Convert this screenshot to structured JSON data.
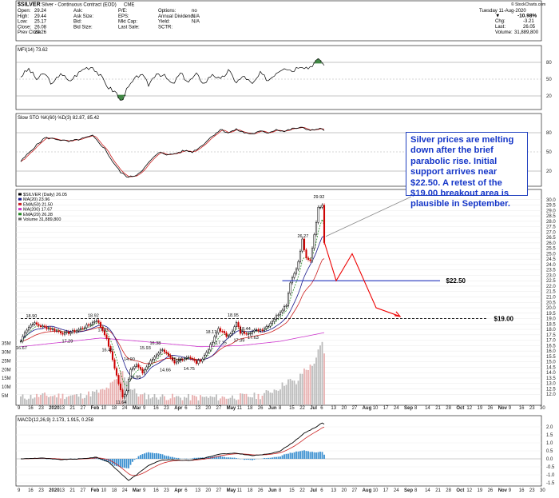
{
  "header": {
    "symbol": "$SILVER",
    "description": "Silver - Continuous Contract (EOD)",
    "exchange": "CME",
    "credit": "© StockCharts.com",
    "quote_fields": [
      {
        "label": "Open:",
        "value": "29.24"
      },
      {
        "label": "High:",
        "value": "29.44"
      },
      {
        "label": "Low:",
        "value": "25.17"
      },
      {
        "label": "Close:",
        "value": "26.08"
      },
      {
        "label": "Prev Close:",
        "value": "29.26"
      }
    ],
    "quote_fields_2": [
      {
        "label": "Ask:",
        "value": ""
      },
      {
        "label": "Ask Size:",
        "value": ""
      },
      {
        "label": "Bid:",
        "value": ""
      },
      {
        "label": "Bid Size:",
        "value": ""
      }
    ],
    "quote_fields_3": [
      {
        "label": "P/E:",
        "value": ""
      },
      {
        "label": "EPS:",
        "value": ""
      },
      {
        "label": "Mkt Cap:",
        "value": ""
      },
      {
        "label": "Last Sale:",
        "value": ""
      }
    ],
    "quote_fields_4": [
      {
        "label": "Options:",
        "value": "no"
      },
      {
        "label": "Annual Dividend:",
        "value": "N/A"
      },
      {
        "label": "Yield:",
        "value": "N/A"
      },
      {
        "label": "SCTR:",
        "value": ""
      }
    ],
    "date": "Tuesday 11-Aug-2020",
    "change_pct": "-10.98%",
    "chg_label": "Chg:",
    "chg_value": "-3.21",
    "last_label": "Last:",
    "last_value": "26.05",
    "volume_label": "Volume:",
    "volume_value": "31,889,800"
  },
  "mfi_panel": {
    "label": "MFI(14) 73.62",
    "ticks": [
      "80",
      "50",
      "20"
    ]
  },
  "sto_panel": {
    "label": "Slow STO %K(60) %D(3) 82.87, 85.42",
    "ticks": [
      "80",
      "50",
      "20"
    ]
  },
  "price_panel": {
    "legend": [
      "$SILVER (Daily) 26.05",
      "MA(20) 23.96",
      "EMA(50) 21.50",
      "MA(200) 17.67",
      "EMA(20) 26.28",
      "Volume 31,889,800"
    ],
    "legend_colors": [
      "#000000",
      "#1a1a8c",
      "#cc2222",
      "#cc33cc",
      "#228822",
      "#666666"
    ],
    "ticks": [
      "30.0",
      "29.5",
      "29.0",
      "28.5",
      "28.0",
      "27.5",
      "27.0",
      "26.5",
      "26.0",
      "25.5",
      "25.0",
      "24.5",
      "24.0",
      "23.5",
      "23.0",
      "22.5",
      "22.0",
      "21.5",
      "21.0",
      "20.5",
      "20.0",
      "19.5",
      "19.0",
      "18.5",
      "18.0",
      "17.5",
      "17.0",
      "16.5",
      "16.0",
      "15.5",
      "15.0",
      "14.5",
      "14.0",
      "13.5",
      "13.0",
      "12.5",
      "12.0"
    ],
    "volume_ticks": [
      "35M",
      "30M",
      "25M",
      "20M",
      "15M",
      "10M",
      "5M"
    ],
    "support_level_label": "$22.50",
    "breakout_level_label": "$19.00"
  },
  "macd_panel": {
    "label": "MACD(12,26,9) 2.173, 1.915, 0.258",
    "ticks": [
      "2.0",
      "1.5",
      "1.0",
      "0.5",
      "0.0",
      "-0.5",
      "-1.0",
      "-1.5"
    ]
  },
  "x_axis": {
    "labels": [
      "9",
      "16",
      "23",
      "2020",
      "13",
      "21",
      "27",
      "Feb",
      "10",
      "18",
      "24",
      "Mar",
      "9",
      "16",
      "23",
      "Apr",
      "6",
      "13",
      "20",
      "27",
      "May",
      "11",
      "18",
      "26",
      "Jun",
      "8",
      "15",
      "22",
      "Jul",
      "6",
      "13",
      "20",
      "27",
      "Aug",
      "10",
      "17",
      "24",
      "Sep",
      "8",
      "14",
      "21",
      "28",
      "Oct",
      "12",
      "19",
      "26",
      "Nov",
      "9",
      "16",
      "23",
      "30"
    ]
  },
  "annotation": "Silver prices are melting down after the brief parabolic rise. Initial support arrives near $22.50. A retest of the $19.00 breakout area is plausible in September.",
  "colors": {
    "price": "#000000",
    "up_candle": "#000000",
    "down_candle": "#cc0000",
    "annotation": "#1536c8",
    "support_line": "#2233bb",
    "forecast": "#ee0000",
    "macd_hist": "#3a8fd0"
  },
  "chart_data": {
    "type": "line",
    "title": "$SILVER Silver - Continuous Contract (EOD) CME",
    "price_labels": [
      {
        "value": 16.67,
        "date": "Jan 6"
      },
      {
        "value": 18.9,
        "date": "Jan 7"
      },
      {
        "value": 17.29,
        "date": "Feb 3"
      },
      {
        "value": 18.92,
        "date": "Feb 24"
      },
      {
        "value": 17.61,
        "date": "Mar 5"
      },
      {
        "value": 16.48,
        "date": "Mar 9"
      },
      {
        "value": 11.64,
        "date": "Mar 18"
      },
      {
        "value": 14.9,
        "date": "Mar 24"
      },
      {
        "value": 13.99,
        "date": "Apr 1"
      },
      {
        "value": 15.93,
        "date": "Apr 9"
      },
      {
        "value": 16.38,
        "date": "Apr 14"
      },
      {
        "value": 14.66,
        "date": "Apr 21"
      },
      {
        "value": 15.64,
        "date": "Apr 29"
      },
      {
        "value": 14.75,
        "date": "May 5"
      },
      {
        "value": 18.17,
        "date": "May 18"
      },
      {
        "value": 17.15,
        "date": "May 26"
      },
      {
        "value": 18.95,
        "date": "Jun 3"
      },
      {
        "value": 17.39,
        "date": "Jun 8"
      },
      {
        "value": 18.44,
        "date": "Jun 10"
      },
      {
        "value": 17.63,
        "date": "Jun 16"
      },
      {
        "value": 26.27,
        "date": "Jul 28"
      },
      {
        "value": 29.92,
        "date": "Aug 7"
      }
    ],
    "annotations": {
      "support": 22.5,
      "breakout": 19.0
    },
    "ylim": [
      11.5,
      30.5
    ],
    "volume_ylim": [
      0,
      38000000
    ],
    "mfi_ylim": [
      0,
      100
    ],
    "sto_ylim": [
      0,
      100
    ],
    "macd_ylim": [
      -1.6,
      2.3
    ]
  }
}
